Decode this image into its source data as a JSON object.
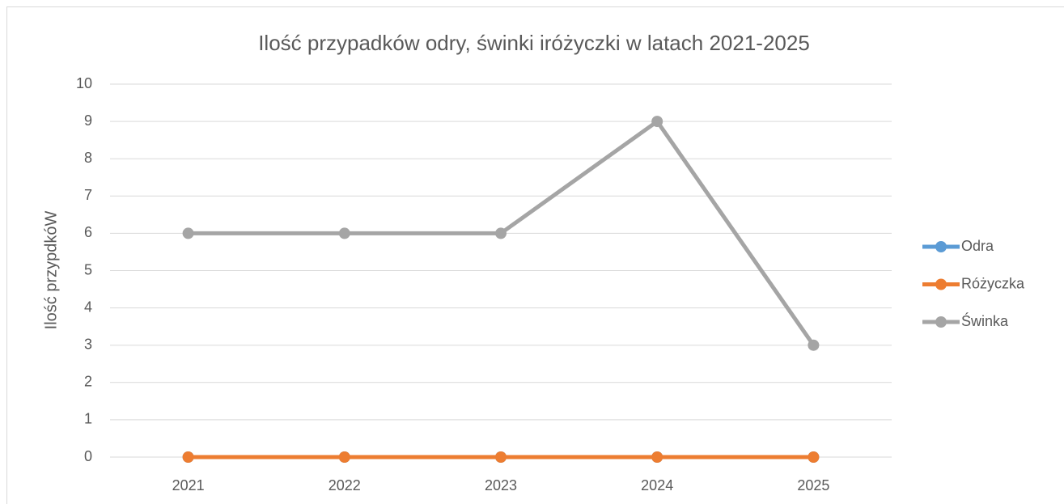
{
  "chart_data": {
    "type": "line",
    "title": "Ilość przypadków odry, świnki iróżyczki w latach 2021-2025",
    "y_label": "Ilość przypdkóW",
    "categories": [
      "2021",
      "2022",
      "2023",
      "2024",
      "2025"
    ],
    "series": [
      {
        "name": "Odra",
        "color": "#5b9bd5",
        "values": [
          0,
          0,
          0,
          0,
          0
        ]
      },
      {
        "name": "Różyczka",
        "color": "#ed7d31",
        "values": [
          0,
          0,
          0,
          0,
          0
        ]
      },
      {
        "name": "Świnka",
        "color": "#a5a5a5",
        "values": [
          6,
          6,
          6,
          9,
          3
        ]
      }
    ],
    "ylim": [
      0,
      10
    ],
    "yticks": [
      0,
      1,
      2,
      3,
      4,
      5,
      6,
      7,
      8,
      9,
      10
    ],
    "grid": true,
    "legend": "right"
  }
}
